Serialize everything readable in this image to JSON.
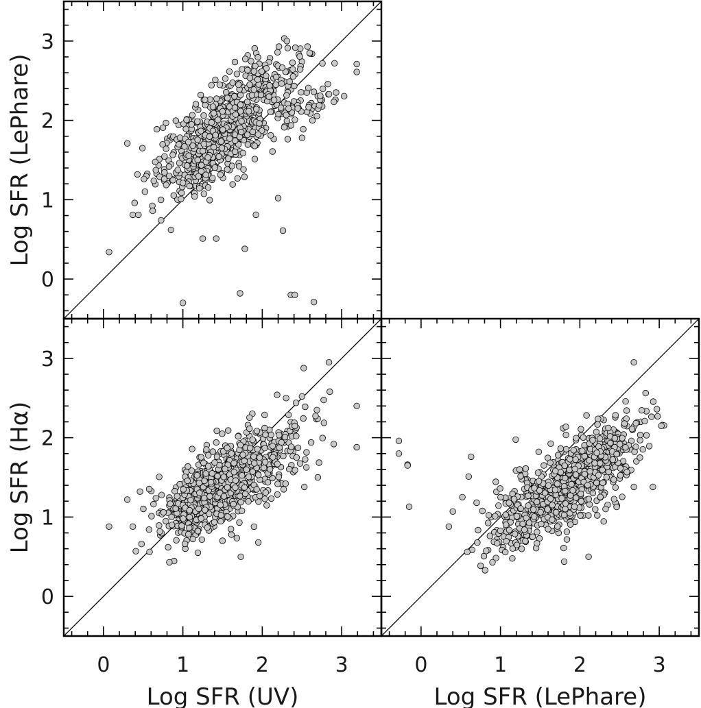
{
  "chart_data": [
    {
      "id": "top-left",
      "type": "scatter",
      "xlabel": "",
      "ylabel": "Log SFR (LePhare)",
      "xlim": [
        -0.5,
        3.5
      ],
      "ylim": [
        -0.5,
        3.5
      ],
      "x_ticks": [],
      "y_ticks": [
        "0",
        "1",
        "2",
        "3"
      ],
      "one_to_one_line": true,
      "marker": "circle, grey fill, black edge",
      "outliers": [
        {
          "x": 0.07,
          "y": 0.34
        },
        {
          "x": 0.3,
          "y": 1.71
        },
        {
          "x": 0.49,
          "y": 1.65
        },
        {
          "x": 0.51,
          "y": 1.26
        },
        {
          "x": 0.37,
          "y": 0.81
        },
        {
          "x": 0.44,
          "y": 0.81
        },
        {
          "x": 0.62,
          "y": 0.86
        },
        {
          "x": 0.85,
          "y": 0.62
        },
        {
          "x": 1.0,
          "y": -0.3
        },
        {
          "x": 1.25,
          "y": 0.51
        },
        {
          "x": 1.42,
          "y": 0.51
        },
        {
          "x": 1.72,
          "y": -0.18
        },
        {
          "x": 1.78,
          "y": 0.38
        },
        {
          "x": 1.92,
          "y": 0.81
        },
        {
          "x": 2.2,
          "y": 1.02
        },
        {
          "x": 2.26,
          "y": 0.61
        },
        {
          "x": 2.36,
          "y": -0.2
        },
        {
          "x": 2.41,
          "y": -0.2
        },
        {
          "x": 2.65,
          "y": -0.29
        },
        {
          "x": 3.19,
          "y": 2.71
        },
        {
          "x": 3.19,
          "y": 2.61
        },
        {
          "x": 2.91,
          "y": 2.72
        },
        {
          "x": 2.31,
          "y": 3.0
        },
        {
          "x": 2.21,
          "y": 2.93
        },
        {
          "x": 2.57,
          "y": 2.93
        },
        {
          "x": 2.84,
          "y": 2.33
        },
        {
          "x": 2.73,
          "y": 2.31
        },
        {
          "x": 2.5,
          "y": 1.78
        }
      ],
      "clusters": [
        {
          "n": 420,
          "cx": 1.3,
          "cy": 1.7,
          "sx": 0.33,
          "sy": 0.33,
          "rho": 0.55
        },
        {
          "n": 230,
          "cx": 1.75,
          "cy": 2.05,
          "sx": 0.35,
          "sy": 0.33,
          "rho": 0.5
        },
        {
          "n": 90,
          "cx": 2.0,
          "cy": 2.45,
          "sx": 0.28,
          "sy": 0.22,
          "rho": 0.45
        },
        {
          "n": 40,
          "cx": 2.55,
          "cy": 2.2,
          "sx": 0.2,
          "sy": 0.12,
          "rho": 0.6
        }
      ]
    },
    {
      "id": "bottom-left",
      "type": "scatter",
      "xlabel": "Log SFR (UV)",
      "ylabel": "Log SFR (Hα)",
      "xlim": [
        -0.5,
        3.5
      ],
      "ylim": [
        -0.5,
        3.5
      ],
      "x_ticks": [
        "0",
        "1",
        "2",
        "3"
      ],
      "y_ticks": [
        "0",
        "1",
        "2",
        "3"
      ],
      "one_to_one_line": true,
      "marker": "circle, grey fill, black edge",
      "outliers": [
        {
          "x": 0.07,
          "y": 0.88
        },
        {
          "x": 0.3,
          "y": 1.22
        },
        {
          "x": 0.37,
          "y": 0.88
        },
        {
          "x": 0.46,
          "y": 1.32
        },
        {
          "x": 0.48,
          "y": 0.66
        },
        {
          "x": 0.58,
          "y": 0.56
        },
        {
          "x": 3.19,
          "y": 2.4
        },
        {
          "x": 3.19,
          "y": 1.88
        },
        {
          "x": 2.84,
          "y": 2.95
        },
        {
          "x": 2.85,
          "y": 2.58
        },
        {
          "x": 2.9,
          "y": 1.92
        },
        {
          "x": 2.3,
          "y": 2.5
        },
        {
          "x": 2.5,
          "y": 2.52
        },
        {
          "x": 2.7,
          "y": 1.5
        },
        {
          "x": 2.53,
          "y": 1.38
        },
        {
          "x": 2.27,
          "y": 1.35
        },
        {
          "x": 1.95,
          "y": 0.68
        },
        {
          "x": 1.73,
          "y": 0.5
        },
        {
          "x": 0.83,
          "y": 0.43
        }
      ],
      "clusters": [
        {
          "n": 480,
          "cx": 1.3,
          "cy": 1.25,
          "sx": 0.33,
          "sy": 0.3,
          "rho": 0.55
        },
        {
          "n": 230,
          "cx": 1.75,
          "cy": 1.6,
          "sx": 0.33,
          "sy": 0.28,
          "rho": 0.5
        },
        {
          "n": 70,
          "cx": 2.3,
          "cy": 1.9,
          "sx": 0.25,
          "sy": 0.22,
          "rho": 0.3
        }
      ]
    },
    {
      "id": "bottom-right",
      "type": "scatter",
      "xlabel": "Log SFR (LePhare)",
      "ylabel": "",
      "xlim": [
        -0.5,
        3.5
      ],
      "ylim": [
        -0.5,
        3.5
      ],
      "x_ticks": [
        "0",
        "1",
        "2",
        "3"
      ],
      "y_ticks": [],
      "one_to_one_line": true,
      "marker": "circle, grey fill, black edge",
      "outliers": [
        {
          "x": -0.28,
          "y": 1.96
        },
        {
          "x": -0.28,
          "y": 1.8
        },
        {
          "x": -0.17,
          "y": 1.66
        },
        {
          "x": -0.17,
          "y": 1.65
        },
        {
          "x": -0.15,
          "y": 1.13
        },
        {
          "x": 0.35,
          "y": 0.88
        },
        {
          "x": 0.4,
          "y": 1.07
        },
        {
          "x": 0.52,
          "y": 1.25
        },
        {
          "x": 0.6,
          "y": 1.51
        },
        {
          "x": 0.63,
          "y": 1.76
        },
        {
          "x": 0.7,
          "y": 1.18
        },
        {
          "x": 2.68,
          "y": 2.95
        },
        {
          "x": 2.98,
          "y": 2.27
        },
        {
          "x": 2.97,
          "y": 2.36
        },
        {
          "x": 2.92,
          "y": 1.38
        },
        {
          "x": 2.68,
          "y": 1.38
        },
        {
          "x": 2.11,
          "y": 0.5
        },
        {
          "x": 0.9,
          "y": 0.43
        }
      ],
      "clusters": [
        {
          "n": 420,
          "cx": 1.55,
          "cy": 1.2,
          "sx": 0.33,
          "sy": 0.3,
          "rho": 0.55
        },
        {
          "n": 260,
          "cx": 2.05,
          "cy": 1.55,
          "sx": 0.32,
          "sy": 0.3,
          "rho": 0.45
        },
        {
          "n": 90,
          "cx": 2.45,
          "cy": 1.95,
          "sx": 0.25,
          "sy": 0.22,
          "rho": 0.45
        }
      ]
    }
  ]
}
